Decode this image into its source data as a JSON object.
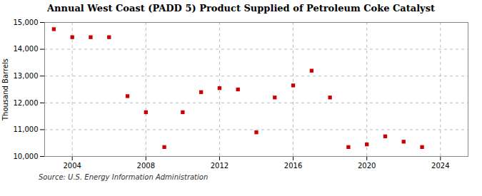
{
  "chart_data": {
    "type": "scatter",
    "title": "Annual West Coast (PADD 5) Product Supplied of Petroleum Coke Catalyst",
    "ylabel": "Thousand Barrels",
    "source": "Source: U.S. Energy Information Administration",
    "x": [
      2003,
      2004,
      2005,
      2006,
      2007,
      2008,
      2009,
      2010,
      2011,
      2012,
      2013,
      2014,
      2015,
      2016,
      2017,
      2018,
      2019,
      2020,
      2021,
      2022,
      2023
    ],
    "values": [
      14750,
      14450,
      14450,
      14450,
      12250,
      11650,
      10350,
      11650,
      12400,
      12550,
      12500,
      10900,
      12200,
      12650,
      13200,
      12200,
      10350,
      10450,
      10750,
      10550,
      10350
    ],
    "color": "#cc0000",
    "marker": "square",
    "xlim": [
      2002.5,
      2025.5
    ],
    "xticks": [
      2004,
      2008,
      2012,
      2016,
      2020,
      2024
    ],
    "ylim": [
      10000,
      15000
    ],
    "yticks": [
      {
        "value": 10000,
        "label": "10,000"
      },
      {
        "value": 11000,
        "label": "11,000"
      },
      {
        "value": 12000,
        "label": "12,000"
      },
      {
        "value": 13000,
        "label": "13,000"
      },
      {
        "value": 14000,
        "label": "14,000"
      },
      {
        "value": 15000,
        "label": "15,000"
      }
    ],
    "grid": true
  }
}
